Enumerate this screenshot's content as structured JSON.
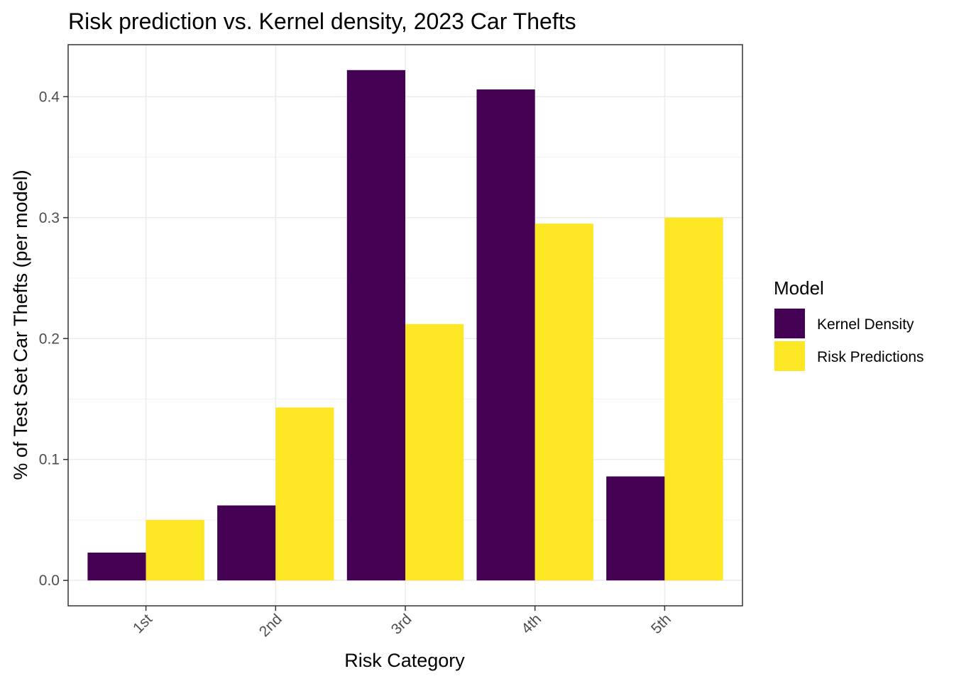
{
  "chart_data": {
    "type": "bar",
    "title": "Risk prediction vs. Kernel density, 2023 Car Thefts",
    "xlabel": "Risk Category",
    "ylabel": "% of Test Set Car Thefts (per model)",
    "categories": [
      "1st",
      "2nd",
      "3rd",
      "4th",
      "5th"
    ],
    "series": [
      {
        "name": "Kernel Density",
        "color": "#440154",
        "values": [
          0.023,
          0.062,
          0.422,
          0.406,
          0.086
        ]
      },
      {
        "name": "Risk Predictions",
        "color": "#FDE725",
        "values": [
          0.05,
          0.143,
          0.212,
          0.295,
          0.3
        ]
      }
    ],
    "ylim": [
      -0.021,
      0.443
    ],
    "yticks": [
      0.0,
      0.1,
      0.2,
      0.3,
      0.4
    ],
    "ytick_labels": [
      "0.0",
      "0.1",
      "0.2",
      "0.3",
      "0.4"
    ],
    "grid": true,
    "legend": {
      "title": "Model",
      "position": "right"
    }
  }
}
